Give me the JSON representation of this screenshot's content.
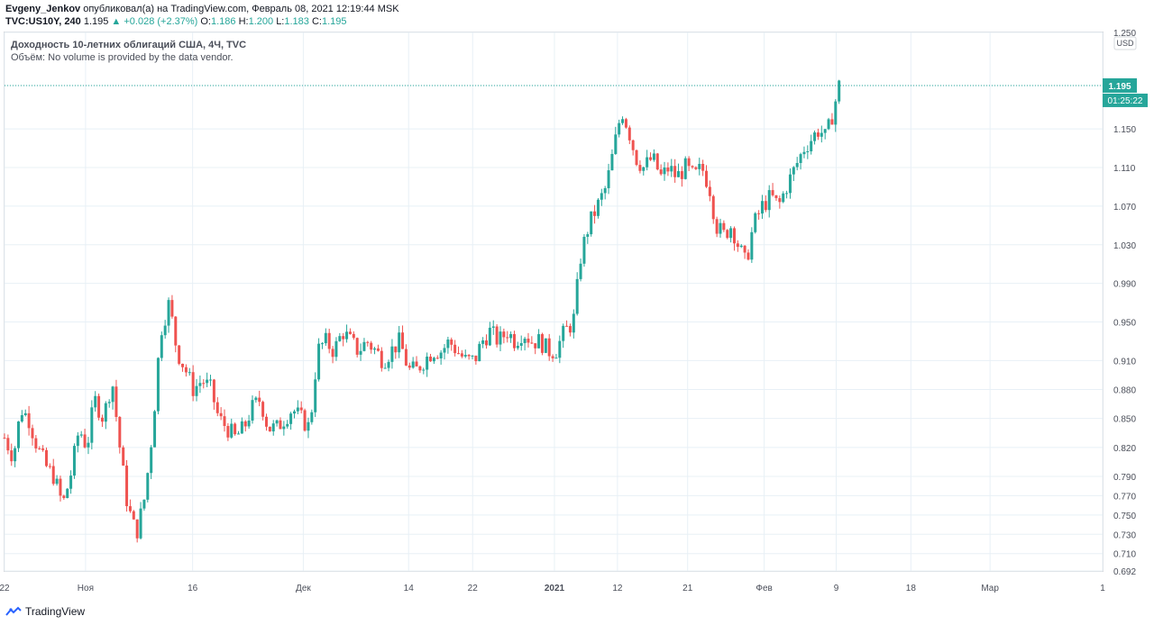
{
  "header": {
    "author": "Evgeny_Jenkov",
    "published_text": "опубликовал(а) на TradingView.com, Февраль 08, 2021 12:19:44 MSK",
    "symbol": "TVC:US10Y, 240",
    "last": "1.195",
    "change": "▲ +0.028 (+2.37%)",
    "o_label": "O:",
    "o_value": "1.186",
    "h_label": "H:",
    "h_value": "1.200",
    "l_label": "L:",
    "l_value": "1.183",
    "c_label": "C:",
    "c_value": "1.195"
  },
  "legend": {
    "title": "Доходность 10-летних облигаций США, 4Ч, TVC",
    "volume": "Объём: No volume is provided by the data vendor."
  },
  "price_scale": {
    "currency": "USD"
  },
  "current_price": {
    "value": "1.195",
    "countdown": "01:25:22"
  },
  "footer": {
    "brand": "TradingView"
  },
  "colors": {
    "up": "#26a69a",
    "down": "#ef5350",
    "grid": "#e8f0f6",
    "tag": "#26a69a"
  },
  "chart_data": {
    "type": "candlestick",
    "ylim": [
      0.692,
      1.25
    ],
    "y_ticks": [
      0.692,
      0.71,
      0.73,
      0.75,
      0.77,
      0.79,
      0.82,
      0.85,
      0.88,
      0.91,
      0.95,
      0.99,
      1.03,
      1.07,
      1.11,
      1.15,
      1.195,
      1.25
    ],
    "x_ticks": [
      {
        "label": "22",
        "pos": 0
      },
      {
        "label": "Ноя",
        "pos": 0.0738
      },
      {
        "label": "16",
        "pos": 0.1713
      },
      {
        "label": "Дек",
        "pos": 0.2721
      },
      {
        "label": "14",
        "pos": 0.368
      },
      {
        "label": "22",
        "pos": 0.4263
      },
      {
        "label": "2021",
        "pos": 0.5008
      },
      {
        "label": "12",
        "pos": 0.5582
      },
      {
        "label": "21",
        "pos": 0.6221
      },
      {
        "label": "Фев",
        "pos": 0.6918
      },
      {
        "label": "9",
        "pos": 0.7574
      },
      {
        "label": "18",
        "pos": 0.8254
      },
      {
        "label": "Мар",
        "pos": 0.8975
      },
      {
        "label": "1",
        "pos": 1.0
      }
    ],
    "close_path": [
      [
        0,
        0.83
      ],
      [
        0.008,
        0.81
      ],
      [
        0.015,
        0.86
      ],
      [
        0.022,
        0.85
      ],
      [
        0.03,
        0.82
      ],
      [
        0.038,
        0.8
      ],
      [
        0.045,
        0.79
      ],
      [
        0.053,
        0.76
      ],
      [
        0.06,
        0.79
      ],
      [
        0.068,
        0.84
      ],
      [
        0.075,
        0.82
      ],
      [
        0.082,
        0.87
      ],
      [
        0.09,
        0.85
      ],
      [
        0.098,
        0.89
      ],
      [
        0.105,
        0.82
      ],
      [
        0.112,
        0.76
      ],
      [
        0.12,
        0.73
      ],
      [
        0.128,
        0.77
      ],
      [
        0.135,
        0.84
      ],
      [
        0.142,
        0.94
      ],
      [
        0.15,
        0.97
      ],
      [
        0.157,
        0.92
      ],
      [
        0.165,
        0.9
      ],
      [
        0.172,
        0.88
      ],
      [
        0.18,
        0.89
      ],
      [
        0.188,
        0.88
      ],
      [
        0.195,
        0.85
      ],
      [
        0.203,
        0.84
      ],
      [
        0.21,
        0.83
      ],
      [
        0.218,
        0.84
      ],
      [
        0.225,
        0.86
      ],
      [
        0.233,
        0.87
      ],
      [
        0.24,
        0.84
      ],
      [
        0.248,
        0.84
      ],
      [
        0.255,
        0.85
      ],
      [
        0.262,
        0.86
      ],
      [
        0.27,
        0.85
      ],
      [
        0.278,
        0.84
      ],
      [
        0.285,
        0.92
      ],
      [
        0.292,
        0.93
      ],
      [
        0.3,
        0.92
      ],
      [
        0.308,
        0.94
      ],
      [
        0.315,
        0.93
      ],
      [
        0.322,
        0.92
      ],
      [
        0.33,
        0.93
      ],
      [
        0.338,
        0.92
      ],
      [
        0.345,
        0.91
      ],
      [
        0.352,
        0.92
      ],
      [
        0.36,
        0.93
      ],
      [
        0.368,
        0.9
      ],
      [
        0.375,
        0.9
      ],
      [
        0.382,
        0.91
      ],
      [
        0.39,
        0.92
      ],
      [
        0.398,
        0.92
      ],
      [
        0.405,
        0.93
      ],
      [
        0.412,
        0.92
      ],
      [
        0.42,
        0.91
      ],
      [
        0.428,
        0.91
      ],
      [
        0.435,
        0.93
      ],
      [
        0.442,
        0.94
      ],
      [
        0.45,
        0.93
      ],
      [
        0.458,
        0.94
      ],
      [
        0.465,
        0.93
      ],
      [
        0.472,
        0.94
      ],
      [
        0.48,
        0.93
      ],
      [
        0.488,
        0.93
      ],
      [
        0.495,
        0.92
      ],
      [
        0.502,
        0.92
      ],
      [
        0.51,
        0.94
      ],
      [
        0.518,
        0.95
      ],
      [
        0.525,
        1.02
      ],
      [
        0.532,
        1.05
      ],
      [
        0.54,
        1.07
      ],
      [
        0.548,
        1.09
      ],
      [
        0.555,
        1.13
      ],
      [
        0.562,
        1.17
      ],
      [
        0.568,
        1.15
      ],
      [
        0.575,
        1.12
      ],
      [
        0.582,
        1.11
      ],
      [
        0.59,
        1.12
      ],
      [
        0.598,
        1.1
      ],
      [
        0.605,
        1.11
      ],
      [
        0.612,
        1.1
      ],
      [
        0.62,
        1.11
      ],
      [
        0.628,
        1.1
      ],
      [
        0.635,
        1.11
      ],
      [
        0.642,
        1.09
      ],
      [
        0.648,
        1.05
      ],
      [
        0.655,
        1.04
      ],
      [
        0.662,
        1.05
      ],
      [
        0.668,
        1.03
      ],
      [
        0.675,
        1.01
      ],
      [
        0.682,
        1.05
      ],
      [
        0.69,
        1.07
      ],
      [
        0.698,
        1.08
      ],
      [
        0.705,
        1.07
      ],
      [
        0.712,
        1.09
      ],
      [
        0.72,
        1.11
      ],
      [
        0.728,
        1.13
      ],
      [
        0.735,
        1.14
      ],
      [
        0.742,
        1.15
      ],
      [
        0.748,
        1.14
      ],
      [
        0.755,
        1.17
      ],
      [
        0.76,
        1.195
      ]
    ]
  }
}
